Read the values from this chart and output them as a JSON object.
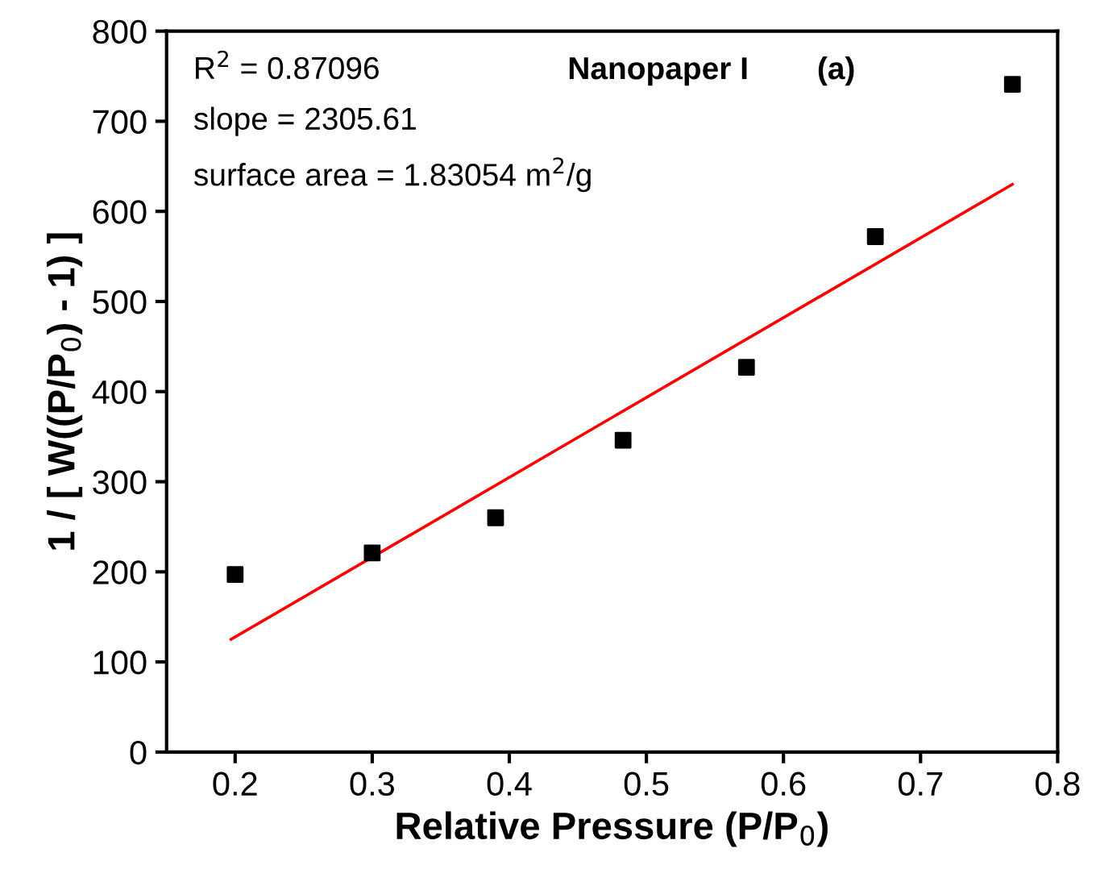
{
  "chart_data": {
    "type": "scatter",
    "xlabel": "Relative Pressure (P/P$_{0}$)",
    "ylabel": "1 / [ W((P/P$_{0}$) - 1) ]",
    "annotations": [
      "R$^{2}$ = 0.87096",
      "slope = 2305.61",
      "surface area = 1.83054 m$^{2}$/g",
      "Nanopaper I",
      "(a)"
    ],
    "series": [
      {
        "color": "#000000",
        "marker": "square",
        "x": [
          0.2,
          0.3,
          0.39,
          0.483,
          0.573,
          0.667,
          0.767
        ],
        "values": [
          197,
          221,
          260,
          346,
          427,
          572,
          741
        ]
      },
      {
        "type": "line",
        "color": "#ff0000",
        "line_style": "solid",
        "marker": "none",
        "x": [
          0.197,
          0.767
        ],
        "values": [
          125,
          630
        ]
      }
    ],
    "xlim": [
      0.15,
      0.8
    ],
    "ylim": [
      0,
      800
    ],
    "xticks": [
      0.2,
      0.3,
      0.4,
      0.5,
      0.6,
      0.7,
      0.8
    ],
    "yticks": [
      0,
      100,
      200,
      300,
      400,
      500,
      600,
      700,
      800
    ],
    "grid": false,
    "legend": false
  }
}
